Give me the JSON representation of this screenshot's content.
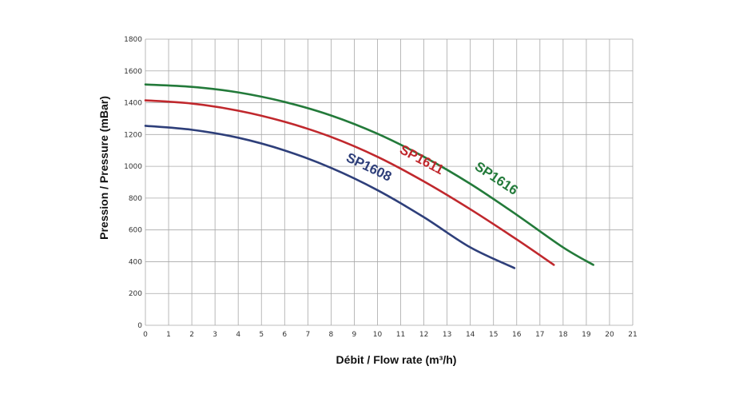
{
  "chart_data": {
    "type": "line",
    "title": "",
    "xlabel": "Débit / Flow rate (m³/h)",
    "ylabel": "Pression / Pressure (mBar)",
    "xlim": [
      0,
      21
    ],
    "ylim": [
      0,
      1800
    ],
    "xticks": [
      0,
      1,
      2,
      3,
      4,
      5,
      6,
      7,
      8,
      9,
      10,
      11,
      12,
      13,
      14,
      15,
      16,
      17,
      18,
      19,
      20,
      21
    ],
    "yticks": [
      0,
      200,
      400,
      600,
      800,
      1000,
      1200,
      1400,
      1600,
      1800
    ],
    "grid": true,
    "series": [
      {
        "name": "SP1608",
        "color": "#2e3f7a",
        "x": [
          0,
          2,
          4,
          6,
          8,
          10,
          12,
          14,
          15.9
        ],
        "y": [
          1255,
          1230,
          1180,
          1100,
          990,
          850,
          680,
          490,
          360
        ]
      },
      {
        "name": "SP1611",
        "color": "#c0282d",
        "x": [
          0,
          2,
          4,
          6,
          8,
          10,
          12,
          14,
          16,
          17.6
        ],
        "y": [
          1415,
          1395,
          1350,
          1280,
          1185,
          1060,
          905,
          730,
          540,
          380
        ]
      },
      {
        "name": "SP1616",
        "color": "#237a3a",
        "x": [
          0,
          2,
          4,
          6,
          8,
          10,
          12,
          14,
          16,
          18,
          19.3
        ],
        "y": [
          1515,
          1500,
          1465,
          1405,
          1320,
          1205,
          1060,
          890,
          695,
          490,
          380
        ]
      }
    ]
  }
}
